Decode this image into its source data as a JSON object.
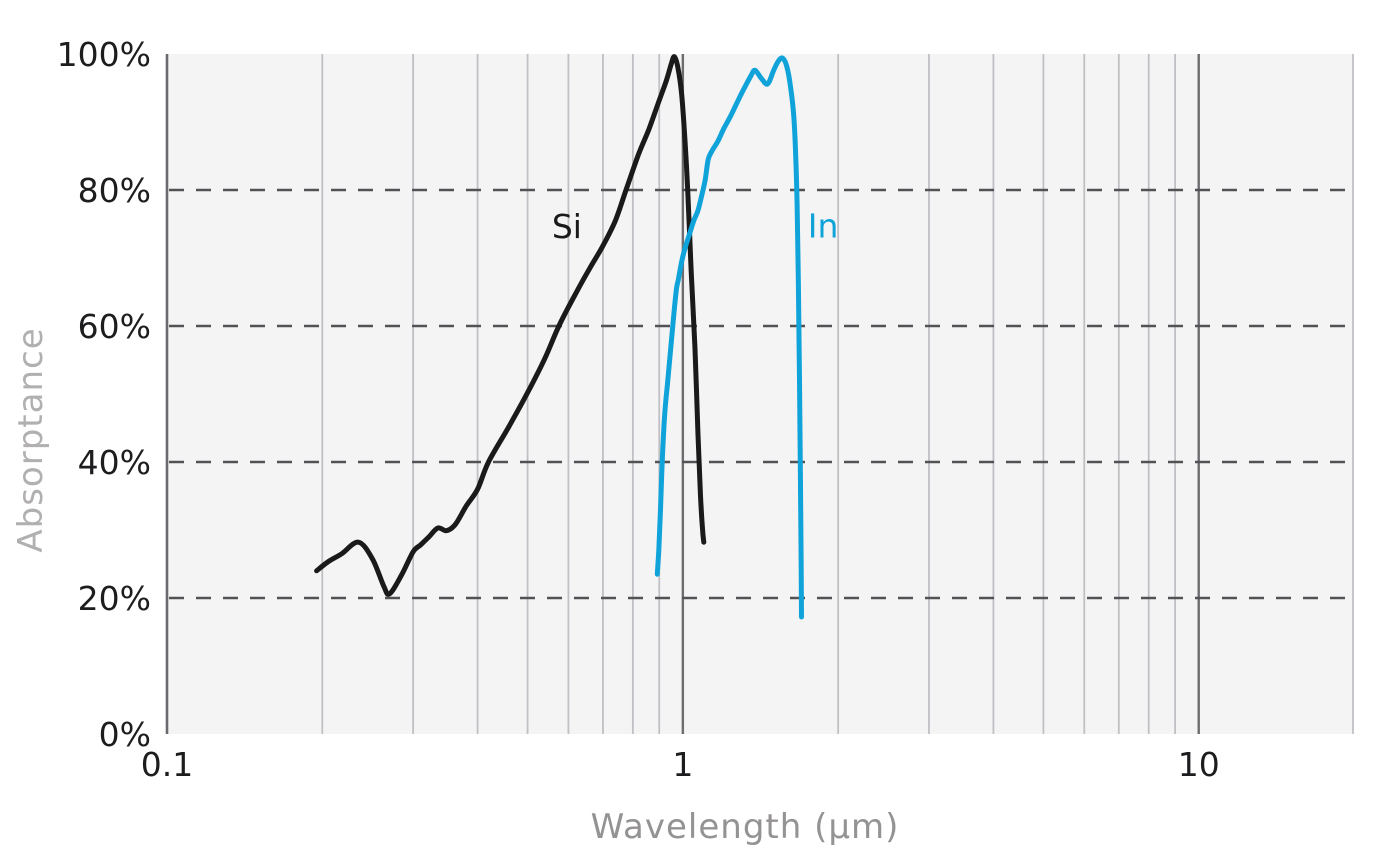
{
  "colors": {
    "page_background": "#ffffff",
    "plot_background": "#f5f4f5",
    "minor_gridline": "#c0c0c4",
    "major_gridline": "#6d6d70",
    "right_border": "#c6c6ca",
    "y_axis_line": "#6a6a6e",
    "dashed_gridline": "#525256",
    "tick_label": "#1d1d1f",
    "xlabel_color": "#949293",
    "ylabel_color": "#b1afb0"
  },
  "chart_data": {
    "type": "line",
    "title": "",
    "xlabel": "Wavelength (μm)",
    "ylabel": "Absorptance",
    "x_scale": "log",
    "xlim": [
      0.1,
      20
    ],
    "ylim": [
      0,
      100
    ],
    "grid": "minor-vertical + dashed-horizontal",
    "legend_position": "inline-labels",
    "x_tick_labels": [
      "0.1",
      "1",
      "10"
    ],
    "x_tick_values": [
      0.1,
      1,
      10
    ],
    "x_minor_gridlines": [
      0.2,
      0.3,
      0.4,
      0.5,
      0.6,
      0.7,
      0.8,
      0.9,
      2,
      3,
      4,
      5,
      6,
      7,
      8,
      9
    ],
    "x_major_gridlines": [
      1,
      10
    ],
    "y_tick_labels": [
      "0%",
      "20%",
      "40%",
      "60%",
      "80%",
      "100%"
    ],
    "y_tick_values": [
      0,
      20,
      40,
      60,
      80,
      100
    ],
    "y_dashed_gridlines": [
      20,
      40,
      60,
      80
    ],
    "series": [
      {
        "name": "Si",
        "color": "#1a1a1a",
        "label_pos": [
          0.596,
          74.7
        ],
        "points": [
          [
            0.195,
            24.0
          ],
          [
            0.205,
            25.3
          ],
          [
            0.218,
            26.5
          ],
          [
            0.235,
            28.2
          ],
          [
            0.25,
            25.8
          ],
          [
            0.263,
            21.8
          ],
          [
            0.27,
            20.6
          ],
          [
            0.285,
            23.4
          ],
          [
            0.3,
            26.8
          ],
          [
            0.31,
            27.8
          ],
          [
            0.322,
            29.0
          ],
          [
            0.335,
            30.3
          ],
          [
            0.348,
            29.9
          ],
          [
            0.362,
            30.8
          ],
          [
            0.38,
            33.5
          ],
          [
            0.4,
            36.0
          ],
          [
            0.42,
            40.0
          ],
          [
            0.46,
            45.2
          ],
          [
            0.5,
            50.2
          ],
          [
            0.54,
            55.2
          ],
          [
            0.575,
            60.0
          ],
          [
            0.62,
            64.8
          ],
          [
            0.66,
            68.5
          ],
          [
            0.7,
            71.8
          ],
          [
            0.74,
            75.5
          ],
          [
            0.776,
            80.0
          ],
          [
            0.82,
            85.2
          ],
          [
            0.86,
            89.0
          ],
          [
            0.9,
            93.2
          ],
          [
            0.93,
            96.2
          ],
          [
            0.95,
            98.6
          ],
          [
            0.963,
            99.6
          ],
          [
            0.978,
            98.0
          ],
          [
            0.995,
            94.0
          ],
          [
            1.01,
            87.0
          ],
          [
            1.022,
            80.0
          ],
          [
            1.038,
            68.0
          ],
          [
            1.055,
            57.0
          ],
          [
            1.07,
            44.0
          ],
          [
            1.082,
            35.0
          ],
          [
            1.092,
            30.0
          ],
          [
            1.098,
            28.2
          ]
        ]
      },
      {
        "name": "In",
        "color": "#0fa3d9",
        "label_pos": [
          1.87,
          74.8
        ],
        "points": [
          [
            0.892,
            23.5
          ],
          [
            0.898,
            27.0
          ],
          [
            0.905,
            33.0
          ],
          [
            0.912,
            40.0
          ],
          [
            0.922,
            47.0
          ],
          [
            0.935,
            52.0
          ],
          [
            0.948,
            57.0
          ],
          [
            0.96,
            61.5
          ],
          [
            0.972,
            65.5
          ],
          [
            0.98,
            66.8
          ],
          [
            0.995,
            69.5
          ],
          [
            1.01,
            71.5
          ],
          [
            1.03,
            73.5
          ],
          [
            1.05,
            75.5
          ],
          [
            1.07,
            77.0
          ],
          [
            1.09,
            79.5
          ],
          [
            1.105,
            81.5
          ],
          [
            1.12,
            84.5
          ],
          [
            1.14,
            85.8
          ],
          [
            1.17,
            87.2
          ],
          [
            1.2,
            89.0
          ],
          [
            1.24,
            91.0
          ],
          [
            1.28,
            93.2
          ],
          [
            1.32,
            95.2
          ],
          [
            1.355,
            96.8
          ],
          [
            1.38,
            97.6
          ],
          [
            1.42,
            96.4
          ],
          [
            1.46,
            95.6
          ],
          [
            1.5,
            97.6
          ],
          [
            1.53,
            98.9
          ],
          [
            1.56,
            99.4
          ],
          [
            1.59,
            98.2
          ],
          [
            1.615,
            95.5
          ],
          [
            1.64,
            91.0
          ],
          [
            1.655,
            85.0
          ],
          [
            1.665,
            78.0
          ],
          [
            1.675,
            66.0
          ],
          [
            1.683,
            52.0
          ],
          [
            1.69,
            38.0
          ],
          [
            1.695,
            26.0
          ],
          [
            1.698,
            17.2
          ]
        ]
      }
    ]
  }
}
